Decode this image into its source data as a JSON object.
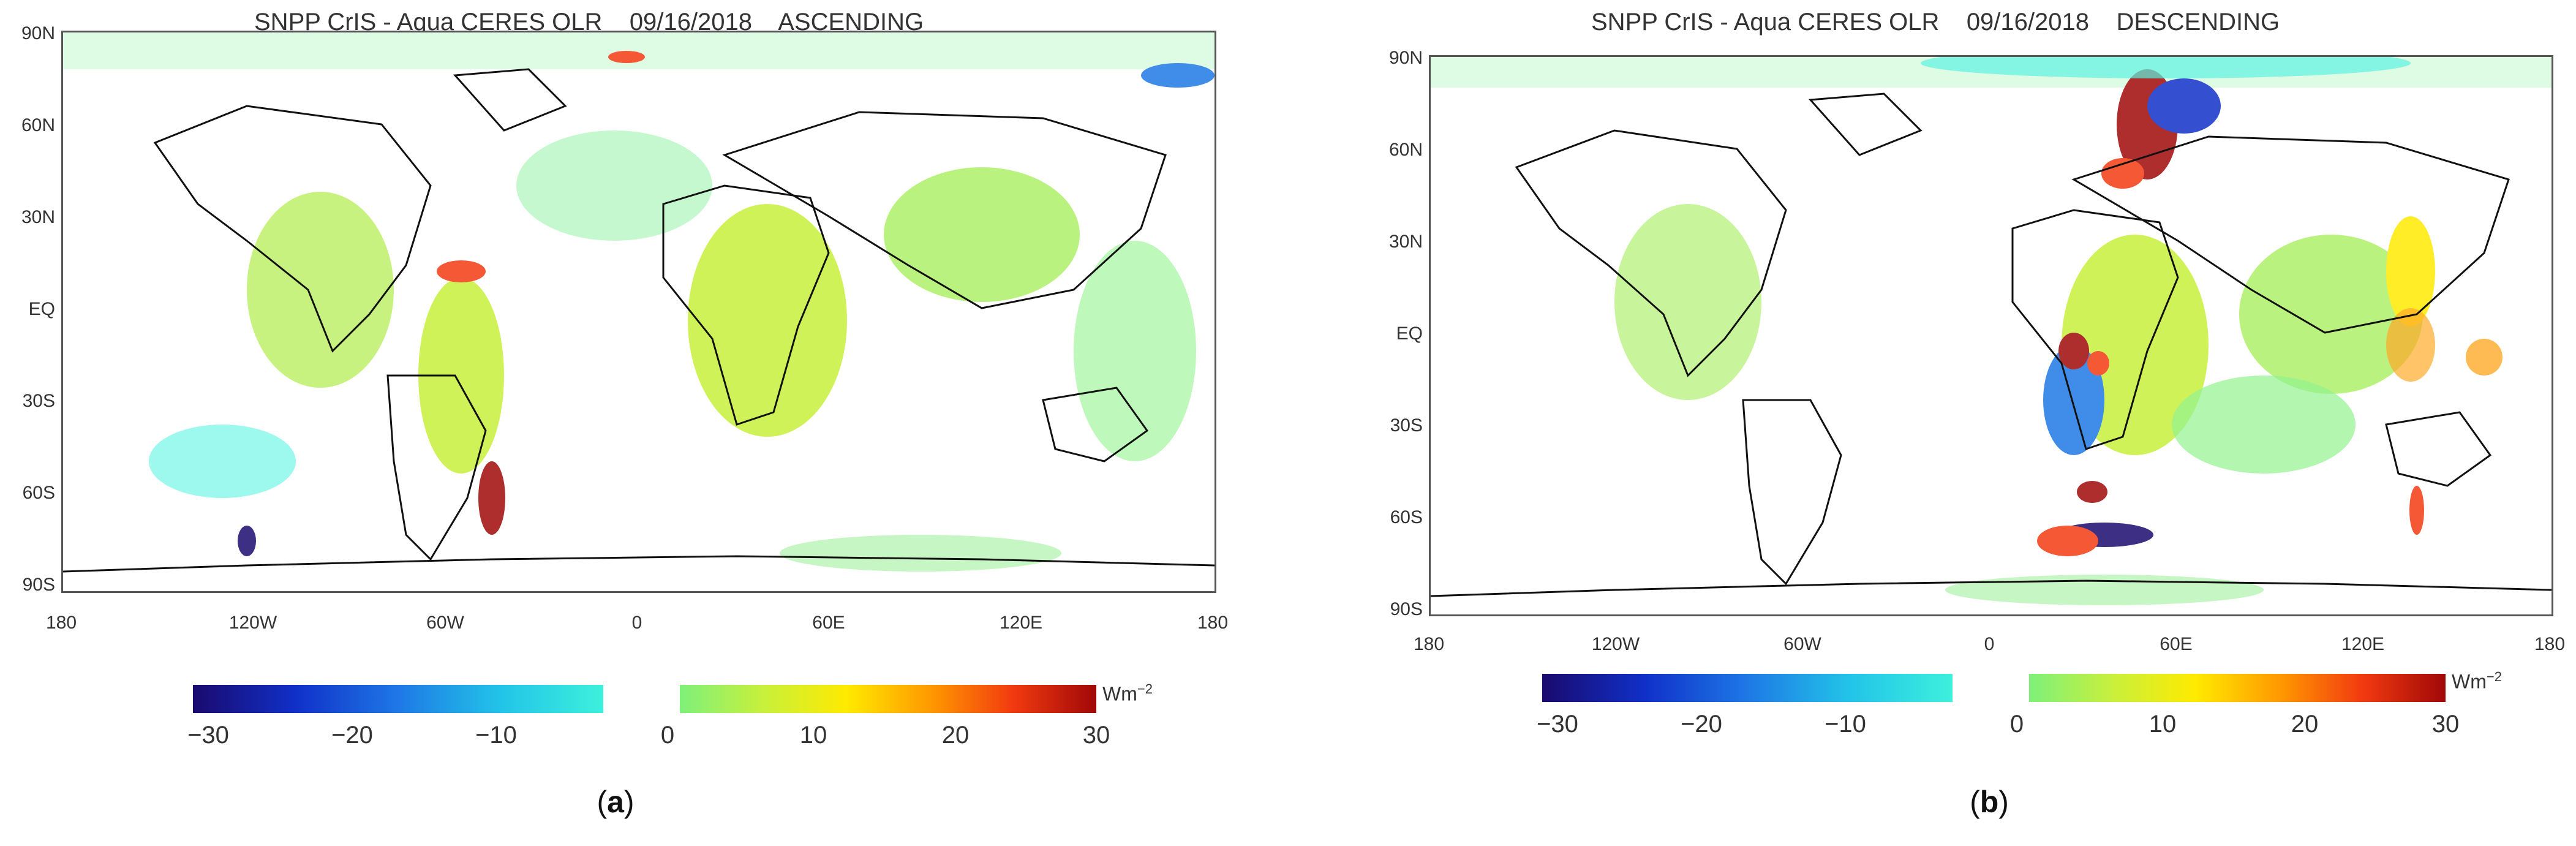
{
  "panels": [
    {
      "id": "a",
      "title": "SNPP CrIS - Aqua CERES OLR    09/16/2018    ASCENDING",
      "lat_labels": [
        "90N",
        "60N",
        "30N",
        "EQ",
        "30S",
        "60S",
        "90S"
      ],
      "lon_labels": [
        "180",
        "120W",
        "60W",
        "0",
        "60E",
        "120E",
        "180"
      ],
      "colorbar": {
        "neg_ticks": [
          "−30",
          "−20",
          "−10"
        ],
        "pos_ticks": [
          "0",
          "10",
          "20",
          "30"
        ],
        "unit": "Wm",
        "unit_exp": "−2"
      },
      "caption_open": "(",
      "caption_letter": "a",
      "caption_close": ")"
    },
    {
      "id": "b",
      "title": "SNPP CrIS - Aqua CERES OLR    09/16/2018    DESCENDING",
      "lat_labels": [
        "90N",
        "60N",
        "30N",
        "EQ",
        "30S",
        "60S",
        "90S"
      ],
      "lon_labels": [
        "180",
        "120W",
        "60W",
        "0",
        "60E",
        "120E",
        "180"
      ],
      "colorbar": {
        "neg_ticks": [
          "−30",
          "−20",
          "−10"
        ],
        "pos_ticks": [
          "0",
          "10",
          "20",
          "30"
        ],
        "unit": "Wm",
        "unit_exp": "−2"
      },
      "caption_open": "(",
      "caption_letter": "b",
      "caption_close": ")"
    }
  ],
  "colors": {
    "neg_strong": "#1a0a6e",
    "neg_mid": "#1e78e6",
    "neg_weak": "#3df0dc",
    "pos_weak": "#7ef07a",
    "pos_mid": "#ffea00",
    "pos_high": "#ff9a00",
    "pos_strong": "#a00808"
  }
}
